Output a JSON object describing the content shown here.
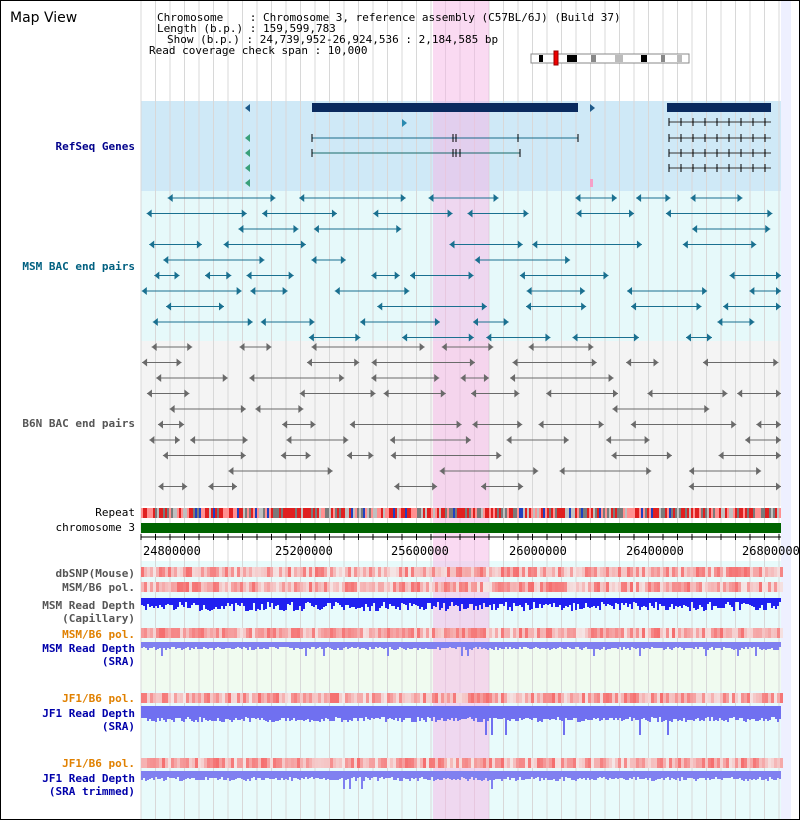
{
  "title": "Map View",
  "info": {
    "chromosome": "Chromosome    : Chromosome 3, reference assembly (C57BL/6J) (Build 37)",
    "length": "Length (b.p.) : 159,599,783",
    "show": "Show (b.p.) : 24,739,952-26,924,536 : 2,184,585 bp",
    "coverage": "Read coverage check span : 10,000"
  },
  "tracks": {
    "refseq": "RefSeq Genes",
    "msm_bac": "MSM BAC end pairs",
    "b6n_bac": "B6N BAC end pairs",
    "repeat": "Repeat",
    "chromosome": "chromosome 3",
    "dbsnp": "dbSNP(Mouse)",
    "msm_b6_pol_1": "MSM/B6 pol.",
    "msm_read_depth_cap_1": "MSM Read Depth",
    "msm_read_depth_cap_2": "(Capillary)",
    "msm_b6_pol_2": "MSM/B6 pol.",
    "msm_read_depth_sra_1": "MSM Read Depth",
    "msm_read_depth_sra_2": "(SRA)",
    "jf1_b6_pol_1": "JF1/B6 pol.",
    "jf1_read_depth_sra_1": "JF1 Read Depth",
    "jf1_read_depth_sra_2": "(SRA)",
    "jf1_b6_pol_2": "JF1/B6 pol.",
    "jf1_read_depth_trim_1": "JF1 Read Depth",
    "jf1_read_depth_trim_2": "(SRA trimmed)"
  },
  "axis": {
    "ticks": [
      "24800000",
      "25200000",
      "25600000",
      "26000000",
      "26400000",
      "26800000"
    ]
  },
  "colors": {
    "refseq_label": "#00008b",
    "msm_label": "#006080",
    "b6n_label": "#555555",
    "orange_label": "#e08000",
    "blue_label": "#0000aa",
    "highlight": "#f5b6e6",
    "chrom_bar": "#006400"
  }
}
